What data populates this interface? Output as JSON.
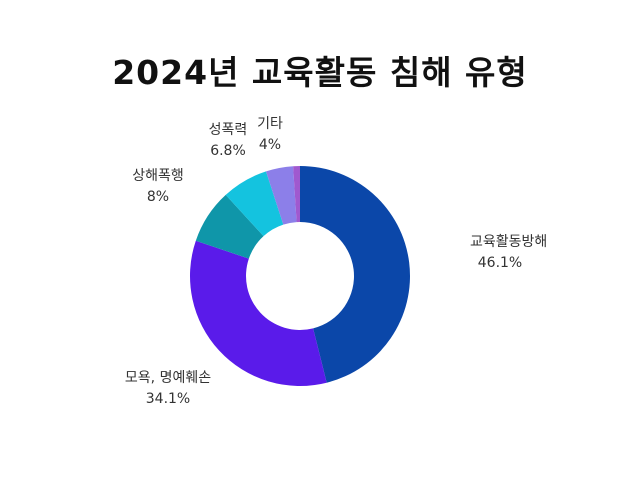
{
  "chart_data": {
    "type": "pie",
    "title": "2024년 교육활동 침해 유형",
    "donut": true,
    "slices": [
      {
        "label": "교육활동방해",
        "value": 46.1,
        "value_label": "46.1%",
        "color": "#0b47a9"
      },
      {
        "label": "모욕, 명예훼손",
        "value": 34.1,
        "value_label": "34.1%",
        "color": "#5a1bea"
      },
      {
        "label": "상해폭행",
        "value": 8,
        "value_label": "8%",
        "color": "#0f96a9"
      },
      {
        "label": "성폭력",
        "value": 6.8,
        "value_label": "6.8%",
        "color": "#14c3df"
      },
      {
        "label": "기타",
        "value": 4,
        "value_label": "4%",
        "color": "#8c7fe9"
      },
      {
        "label": "",
        "value": 1,
        "value_label": "",
        "color": "#a059cf"
      }
    ],
    "legend": "none"
  }
}
